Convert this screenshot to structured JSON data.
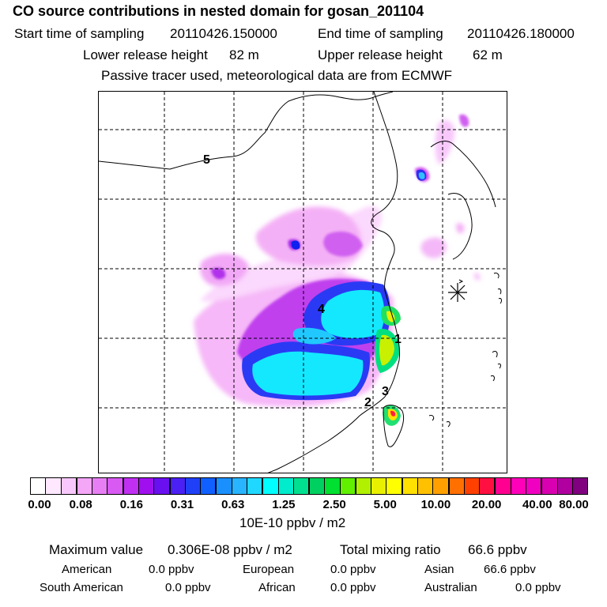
{
  "header": {
    "title": "CO  source contributions in nested domain for gosan_201104",
    "start_label": "Start time of sampling",
    "start_value": "20110426.150000",
    "end_label": "End time of sampling",
    "end_value": "20110426.180000",
    "lower_label": "Lower release height",
    "lower_value": "82 m",
    "upper_label": "Upper release height",
    "upper_value": "62 m",
    "note": "Passive tracer used, meteorological data are from ECMWF"
  },
  "map": {
    "region_labels": [
      "1",
      "2",
      "3",
      "4",
      "5"
    ],
    "receptor_marker": "station-marker"
  },
  "colorbar": {
    "colors": [
      "#ffffff",
      "#fde8ff",
      "#f8c8fc",
      "#f4a6f7",
      "#e77ef4",
      "#d85af2",
      "#c030f2",
      "#a010ee",
      "#6a10f0",
      "#4a20f4",
      "#2040f8",
      "#1060ff",
      "#1a90ff",
      "#28b4ff",
      "#20d8ff",
      "#00ffff",
      "#00eccc",
      "#00e090",
      "#00d060",
      "#00e030",
      "#60f000",
      "#b0f000",
      "#e8f000",
      "#ffff00",
      "#ffe000",
      "#ffc000",
      "#ffa000",
      "#ff7000",
      "#ff4000",
      "#ff1040",
      "#ff0090",
      "#ff00b8",
      "#f000c0",
      "#d800b0",
      "#b000a0",
      "#800080"
    ],
    "tick_labels": [
      "0.00",
      "0.08",
      "0.16",
      "0.31",
      "0.63",
      "1.25",
      "2.50",
      "5.00",
      "10.00",
      "20.00",
      "40.00",
      "80.00"
    ],
    "unit": "10E-10 ppbv / m2"
  },
  "stats": {
    "max_label": "Maximum value",
    "max_value": "0.306E-08 ppbv / m2",
    "total_label": "Total mixing ratio",
    "total_value": "66.6 ppbv",
    "sources": [
      {
        "name": "American",
        "value": "0.0 ppbv"
      },
      {
        "name": "European",
        "value": "0.0 ppbv"
      },
      {
        "name": "Asian",
        "value": "66.6 ppbv"
      },
      {
        "name": "South American",
        "value": "0.0 ppbv"
      },
      {
        "name": "African",
        "value": "0.0 ppbv"
      },
      {
        "name": "Australian",
        "value": "0.0 ppbv"
      }
    ]
  }
}
